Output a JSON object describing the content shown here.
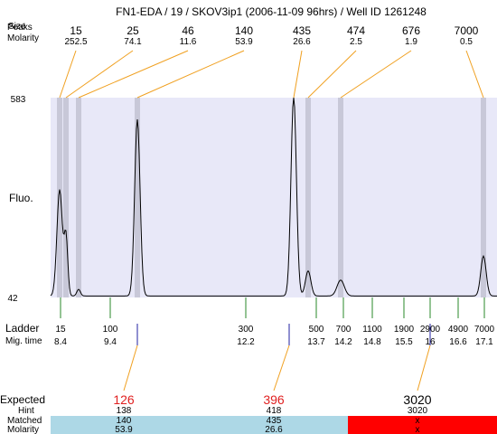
{
  "header": {
    "title": "FN1-EDA / 19 / SKOV3ip1 (2006-11-09 96hrs) / Well ID 1261248",
    "row_label_overlap_a": "Peaks",
    "row_label_overlap_b": "Size",
    "molarity_label": "Molarity"
  },
  "peaks": [
    {
      "size": "15",
      "molarity": "252.5"
    },
    {
      "size": "25",
      "molarity": "74.1"
    },
    {
      "size": "46",
      "molarity": "11.6"
    },
    {
      "size": "140",
      "molarity": "53.9"
    },
    {
      "size": "435",
      "molarity": "26.6"
    },
    {
      "size": "474",
      "molarity": "2.5"
    },
    {
      "size": "676",
      "molarity": "1.9"
    },
    {
      "size": "7000",
      "molarity": "0.5"
    }
  ],
  "plot": {
    "y_axis_label": "Fluo.",
    "y_max_label": "583",
    "y_min_label": "42",
    "background_color": "#e8e8f8",
    "band_color": "#c8c8d8",
    "connector_color": "#f0a020"
  },
  "ladder": {
    "label": "Ladder",
    "migtime_label": "Mig. time",
    "sizes": [
      "15",
      "100",
      "300",
      "500",
      "700",
      "1100",
      "1900",
      "2900",
      "4900",
      "7000"
    ],
    "mig_times": [
      "8.4",
      "9.4",
      "12.2",
      "13.7",
      "14.2",
      "14.8",
      "15.5",
      "16",
      "16.6",
      "17.1"
    ]
  },
  "expected": {
    "label": "Expected",
    "hint_label": "Hint",
    "matched_label": "Matched",
    "molarity_label": "Molarity",
    "columns": [
      {
        "expected": "126",
        "hint": "138",
        "matched": "140",
        "molarity": "53.9",
        "status": "matched"
      },
      {
        "expected": "396",
        "hint": "418",
        "matched": "435",
        "molarity": "26.6",
        "status": "matched"
      },
      {
        "expected": "3020",
        "hint": "3020",
        "matched": "x",
        "molarity": "x",
        "status": "unmatched"
      }
    ],
    "matched_color": "#add8e6",
    "unmatched_color": "#ff0000",
    "expected_highlight_color": "#e02020"
  },
  "chart_data": {
    "type": "line",
    "title": "",
    "xlabel": "",
    "ylabel": "Fluo.",
    "ylim": [
      42,
      583
    ],
    "x_axis": "size (ladder)",
    "peaks": [
      {
        "x": 15,
        "y": 330
      },
      {
        "x": 25,
        "y": 200
      },
      {
        "x": 46,
        "y": 60
      },
      {
        "x": 140,
        "y": 520
      },
      {
        "x": 435,
        "y": 583
      },
      {
        "x": 474,
        "y": 110
      },
      {
        "x": 676,
        "y": 85
      },
      {
        "x": 7000,
        "y": 150
      }
    ]
  }
}
